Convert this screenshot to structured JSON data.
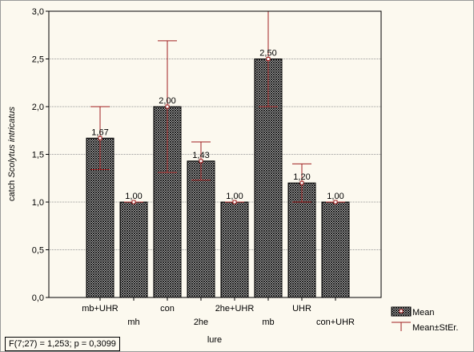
{
  "chart_data": {
    "type": "bar",
    "xlabel": "lure",
    "ylabel_prefix": "catch ",
    "ylabel_italic": "Scolytus intricatus",
    "ylim": [
      0,
      3.0
    ],
    "y_ticks": [
      0,
      0.5,
      1.0,
      1.5,
      2.0,
      2.5,
      3.0
    ],
    "y_tick_labels": [
      "0,0",
      "0,5",
      "1,0",
      "1,5",
      "2,0",
      "2,5",
      "3,0"
    ],
    "grid": true,
    "categories": [
      "mb+UHR",
      "mh",
      "con",
      "2he",
      "2he+UHR",
      "mb",
      "UHR",
      "con+UHR"
    ],
    "values": [
      1.67,
      1.0,
      2.0,
      1.43,
      1.0,
      2.5,
      1.2,
      1.0
    ],
    "value_labels": [
      "1,67",
      "1,00",
      "2,00",
      "1,43",
      "1,00",
      "2,50",
      "1,20",
      "1,00"
    ],
    "errors": [
      0.33,
      0.0,
      0.69,
      0.2,
      0.0,
      0.5,
      0.2,
      0.0
    ],
    "legend": {
      "position": "bottom-right",
      "entries": [
        "Mean",
        "Mean±StEr."
      ]
    },
    "colors": {
      "bar_fill": "#ffffff",
      "bar_hatch": "#000000",
      "error": "#a02020",
      "grid": "#9a9a9a"
    }
  },
  "stat_note": "F(7;27) = 1,253; p = 0,3099"
}
